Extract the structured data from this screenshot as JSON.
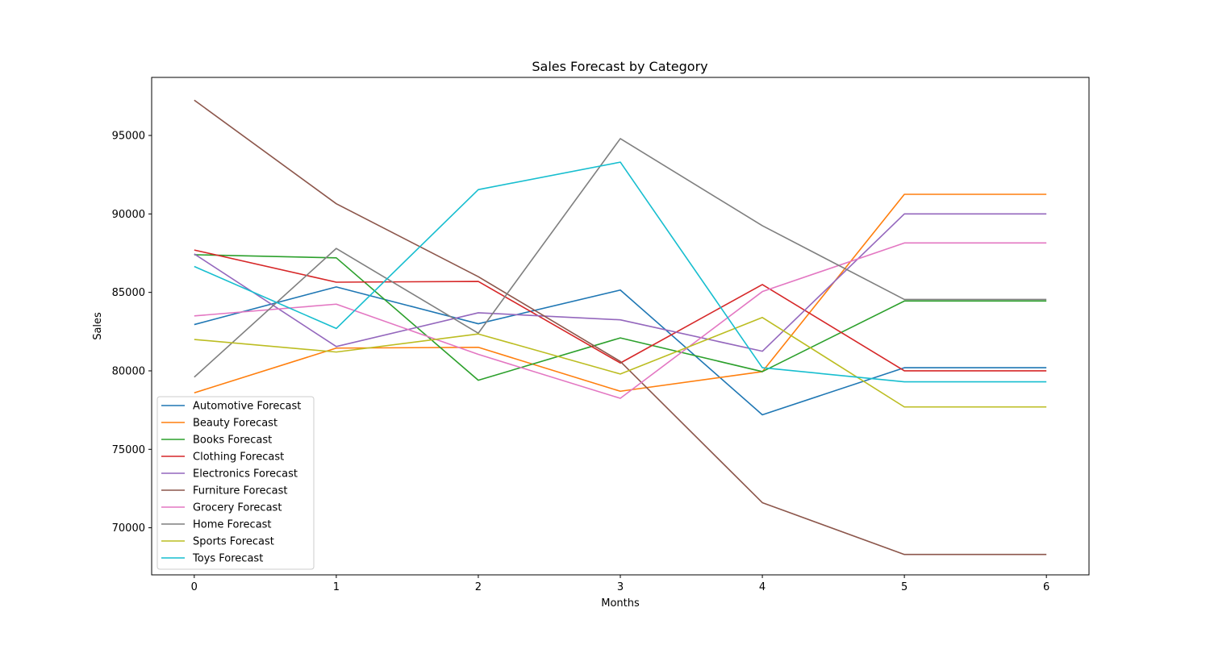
{
  "chart_data": {
    "type": "line",
    "title": "Sales Forecast by Category",
    "xlabel": "Months",
    "ylabel": "Sales",
    "x": [
      0,
      1,
      2,
      3,
      4,
      5,
      6
    ],
    "xticks": [
      "0",
      "1",
      "2",
      "3",
      "4",
      "5",
      "6"
    ],
    "yticks": [
      70000,
      75000,
      80000,
      85000,
      90000,
      95000
    ],
    "xlim": [
      -0.3,
      6.3
    ],
    "ylim": [
      67000,
      98700
    ],
    "grid": false,
    "legend_position": "lower-left",
    "series": [
      {
        "name": "Automotive Forecast",
        "color": "#1f77b4",
        "values": [
          82950,
          85350,
          83000,
          85150,
          77200,
          80200,
          80200
        ]
      },
      {
        "name": "Beauty Forecast",
        "color": "#ff7f0e",
        "values": [
          78600,
          81450,
          81500,
          78700,
          79950,
          91250,
          91250
        ]
      },
      {
        "name": "Books Forecast",
        "color": "#2ca02c",
        "values": [
          87400,
          87200,
          79400,
          82100,
          79950,
          84450,
          84450
        ]
      },
      {
        "name": "Clothing Forecast",
        "color": "#d62728",
        "values": [
          87700,
          85650,
          85700,
          80500,
          85500,
          80000,
          80000
        ]
      },
      {
        "name": "Electronics Forecast",
        "color": "#9467bd",
        "values": [
          87450,
          81550,
          83700,
          83250,
          81250,
          90000,
          90000
        ]
      },
      {
        "name": "Furniture Forecast",
        "color": "#8c564b",
        "values": [
          97250,
          90650,
          86000,
          80600,
          71600,
          68300,
          68300
        ]
      },
      {
        "name": "Grocery Forecast",
        "color": "#e377c2",
        "values": [
          83500,
          84250,
          81050,
          78250,
          85050,
          88150,
          88150
        ]
      },
      {
        "name": "Home Forecast",
        "color": "#7f7f7f",
        "values": [
          79600,
          87800,
          82400,
          94800,
          89250,
          84550,
          84550
        ]
      },
      {
        "name": "Sports Forecast",
        "color": "#bcbd22",
        "values": [
          82000,
          81200,
          82350,
          79800,
          83400,
          77700,
          77700
        ]
      },
      {
        "name": "Toys Forecast",
        "color": "#17becf",
        "values": [
          86650,
          82700,
          91550,
          93300,
          80200,
          79300,
          79300
        ]
      }
    ]
  }
}
